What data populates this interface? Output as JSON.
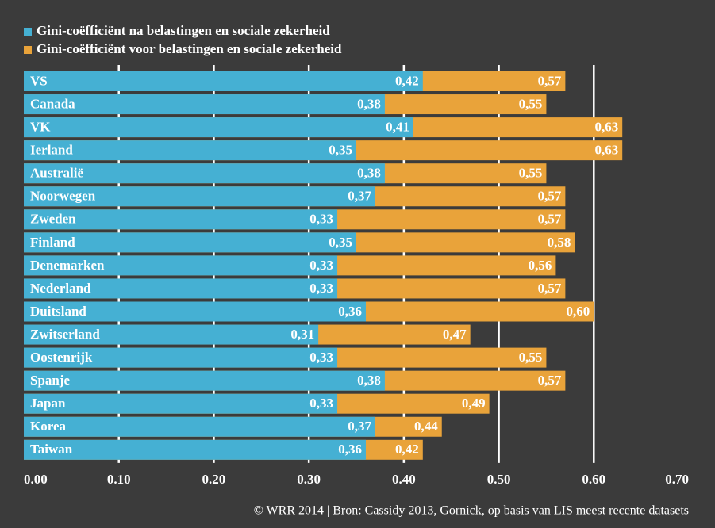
{
  "chart_data": {
    "type": "bar",
    "orientation": "horizontal",
    "overlap": true,
    "categories": [
      "VS",
      "Canada",
      "VK",
      "Ierland",
      "Australië",
      "Noorwegen",
      "Zweden",
      "Finland",
      "Denemarken",
      "Nederland",
      "Duitsland",
      "Zwitserland",
      "Oostenrijk",
      "Spanje",
      "Japan",
      "Korea",
      "Taiwan"
    ],
    "series": [
      {
        "name": "Gini-coëfficiënt voor belastingen en sociale zekerheid",
        "color": "#e9a33a",
        "values": [
          0.57,
          0.55,
          0.63,
          0.63,
          0.55,
          0.57,
          0.57,
          0.58,
          0.56,
          0.57,
          0.6,
          0.47,
          0.55,
          0.57,
          0.49,
          0.44,
          0.42
        ],
        "value_labels": [
          "0,57",
          "0,55",
          "0,63",
          "0,63",
          "0,55",
          "0,57",
          "0,57",
          "0,58",
          "0,56",
          "0,57",
          "0,60",
          "0,47",
          "0,55",
          "0,57",
          "0,49",
          "0,44",
          "0,42"
        ]
      },
      {
        "name": "Gini-coëfficiënt na belastingen en sociale zekerheid",
        "color": "#45b0d3",
        "values": [
          0.42,
          0.38,
          0.41,
          0.35,
          0.38,
          0.37,
          0.33,
          0.35,
          0.33,
          0.33,
          0.36,
          0.31,
          0.33,
          0.38,
          0.33,
          0.37,
          0.36
        ],
        "value_labels": [
          "0,42",
          "0,38",
          "0,41",
          "0,35",
          "0,38",
          "0,37",
          "0,33",
          "0,35",
          "0,33",
          "0,33",
          "0,36",
          "0,31",
          "0,33",
          "0,38",
          "0,33",
          "0,37",
          "0,36"
        ]
      }
    ],
    "legend_order": [
      1,
      0
    ],
    "xlim": [
      0,
      0.7
    ],
    "xticks": [
      {
        "value": 0,
        "label": "0.00"
      },
      {
        "value": 0.1,
        "label": "0.10"
      },
      {
        "value": 0.2,
        "label": "0.20"
      },
      {
        "value": 0.3,
        "label": "0.30"
      },
      {
        "value": 0.4,
        "label": "0.40"
      },
      {
        "value": 0.5,
        "label": "0.50"
      },
      {
        "value": 0.6,
        "label": "0.60"
      },
      {
        "value": 0.7,
        "label": "0.70"
      }
    ],
    "grid": true,
    "source": "© WRR 2014 | Bron: Cassidy 2013, Gornick, op basis van LIS meest recente datasets"
  }
}
